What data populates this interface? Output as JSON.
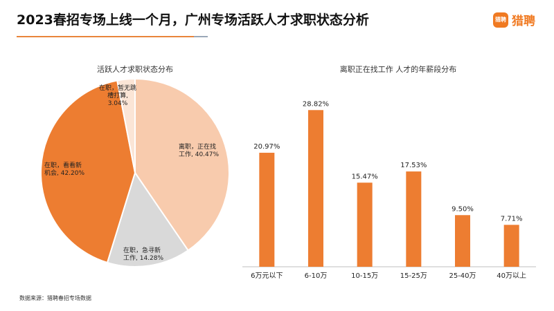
{
  "header": {
    "title": "2023春招专场上线一个月，广州专场活跃人才求职状态分析",
    "logo_badge": "猎聘",
    "logo_text": "猎聘"
  },
  "footer": {
    "source": "数据来源：猎聘春招专场数据"
  },
  "colors": {
    "accent": "#f07a22",
    "bar": "#ed7d31"
  },
  "chart_data": [
    {
      "type": "pie",
      "title": "活跃人才求职状态分布",
      "slices": [
        {
          "label": "离职，正在找工作, 40.47%",
          "value": 40.47,
          "color": "#f8cbad"
        },
        {
          "label": "在职，急寻新工作, 14.28%",
          "value": 14.28,
          "color": "#d9d9d9"
        },
        {
          "label": "在职，看看新机会, 42.20%",
          "value": 42.2,
          "color": "#ed7d31"
        },
        {
          "label": "在职，暂无跳槽打算, 3.04%",
          "value": 3.04,
          "color": "#fbe5d6"
        }
      ]
    },
    {
      "type": "bar",
      "title": "离职正在找工作 人才的年薪段分布",
      "categories": [
        "6万元以下",
        "6-10万",
        "10-15万",
        "15-25万",
        "25-40万",
        "40万以上"
      ],
      "values": [
        20.97,
        28.82,
        15.47,
        17.53,
        9.5,
        7.71
      ],
      "data_labels": [
        "20.97%",
        "28.82%",
        "15.47%",
        "17.53%",
        "9.50%",
        "7.71%"
      ],
      "ylim": [
        0,
        30
      ]
    }
  ]
}
